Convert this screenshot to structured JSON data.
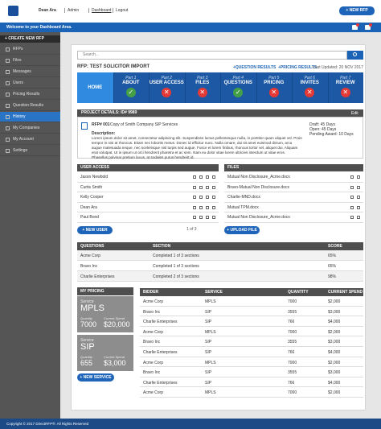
{
  "header": {
    "user": "Dean Ara",
    "links": [
      "Admin",
      "Dashboard",
      "Logout"
    ],
    "new_rfp": "+ NEW RFP",
    "welcome": "Welcome to your Dashboard Area."
  },
  "sidebar": {
    "create": "+ CREATE NEW RFP",
    "items": [
      "RFPs",
      "Files",
      "Messages",
      "Users",
      "Pricing Results",
      "Question Results",
      "History",
      "My Companies",
      "My Account",
      "Settings"
    ]
  },
  "search": {
    "placeholder": "Search..."
  },
  "rfp": {
    "title": "RFP: TEST SOLICITOR IMPORT",
    "links": [
      "+QUESTION RESULTS",
      "+PRICING RESULTS"
    ],
    "updated": "Last Updated: 20 NOV 2017"
  },
  "steps": {
    "home": "HOME",
    "parts": [
      {
        "part": "Part 1",
        "label": "ABOUT",
        "status": "done"
      },
      {
        "part": "Part 2",
        "label": "USER ACCESS",
        "status": "todo"
      },
      {
        "part": "Part 3",
        "label": "FILES",
        "status": "todo"
      },
      {
        "part": "Part 4",
        "label": "QUESTIONS",
        "status": "done"
      },
      {
        "part": "Part 5",
        "label": "PRICING",
        "status": "todo"
      },
      {
        "part": "Part 6",
        "label": "INVITES",
        "status": "todo"
      },
      {
        "part": "Part 7",
        "label": "REVIEW",
        "status": "todo"
      }
    ]
  },
  "project": {
    "header": "PROJECT DETAILS: ID# 9989",
    "edit": "Edit",
    "rfp_no": "RFP# 001",
    "rfp_name": "Copy of Smith Company SIP Services",
    "description_label": "Description:",
    "description": "Lorem ipsum dolor sit amet, consectetur adipiscing elit. Suspendisse luctus pellentesque nulla, in porttitor quam aliquet vel. Proin tempor in nisi at rhoncus. Etiam nec lobortis metus. Donec id efficitur nunc. Nulla ornare, dui sit amet euismod dictum, arcu augue malesuada neque, nec scelerisque nisl turpis sed augue. Fusce et lorem finibus, rhoncus tortor vel, aliquet dui. Aliquam erat volutpat. Ut in ipsum ut orci hendrerit pharetra et ac sem. Nam eu dolor vitae lorem ultricies interdum ut vitae eros. Phasellus pulvinar pretium lacus, at sodales purus hendrerit id.",
    "timeline": [
      "Draft: 45 Days",
      "Open: 45 Days",
      "Pending Award: 10 Days"
    ]
  },
  "users": {
    "header": "USER ACCESS",
    "rows": [
      "Jason Newbold",
      "Curtis Smith",
      "Kelly Cooper",
      "Dean Ara",
      "Paul Bond"
    ],
    "pager": "1 of 3",
    "button": "+ NEW USER"
  },
  "files": {
    "header": "FILES",
    "rows": [
      "Mutual Non Disclosure_Acme.docx",
      "Bravo-Mutual Non Disclosure.docx",
      "Charlie-MND.docx",
      "Mutual TPM.docx",
      "Mutual Non Disclosure_Acme.docx"
    ],
    "button": "+ UPLOAD FILE"
  },
  "questions": {
    "columns": [
      "QUESTIONS",
      "SECTION",
      "SCORE"
    ],
    "rows": [
      [
        "Acme Corp",
        "Completed 1 of 3 sections",
        "65%"
      ],
      [
        "Bravo Inc",
        "Completed 1 of 3 sections",
        "65%"
      ],
      [
        "Charlie Enterprises",
        "Completed 2 of 3 sections",
        "98%"
      ]
    ]
  },
  "my_pricing": {
    "header": "MY PRICING",
    "cards": [
      {
        "service_label": "Service",
        "service": "MPLS",
        "quantity_label": "Quantity",
        "quantity": "7000",
        "spend_label": "Current Spend",
        "spend": "$20,000"
      },
      {
        "service_label": "Service",
        "service": "SIP",
        "quantity_label": "Quantity",
        "quantity": "655",
        "spend_label": "Current Spend",
        "spend": "$3,000"
      }
    ],
    "button": "+ NEW SERVICE"
  },
  "pricing": {
    "columns": [
      "BIDDER",
      "SERVICE",
      "QUANTITY",
      "CURRENT SPEND"
    ],
    "rows": [
      [
        "Acme Corp",
        "MPLS",
        "7000",
        "$2,000"
      ],
      [
        "Bravo Inc",
        "SIP",
        "3555",
        "$3,000"
      ],
      [
        "Charlie Enterprises",
        "SIP",
        "766",
        "$4,000"
      ],
      [
        "Acme Corp",
        "MPLS",
        "7000",
        "$2,000"
      ],
      [
        "Bravo Inc",
        "SIP",
        "3555",
        "$3,000"
      ],
      [
        "Charlie Enterprises",
        "SIP",
        "766",
        "$4,000"
      ],
      [
        "Acme Corp",
        "MPLS",
        "7000",
        "$2,000"
      ],
      [
        "Bravo Inc",
        "SIP",
        "3555",
        "$3,000"
      ],
      [
        "Charlie Enterprises",
        "SIP",
        "766",
        "$4,000"
      ],
      [
        "Acme Corp",
        "MPLS",
        "7000",
        "$2,000"
      ]
    ]
  },
  "footer": "Copyright © 2017 DirectRFP®. All Rights Reserved"
}
